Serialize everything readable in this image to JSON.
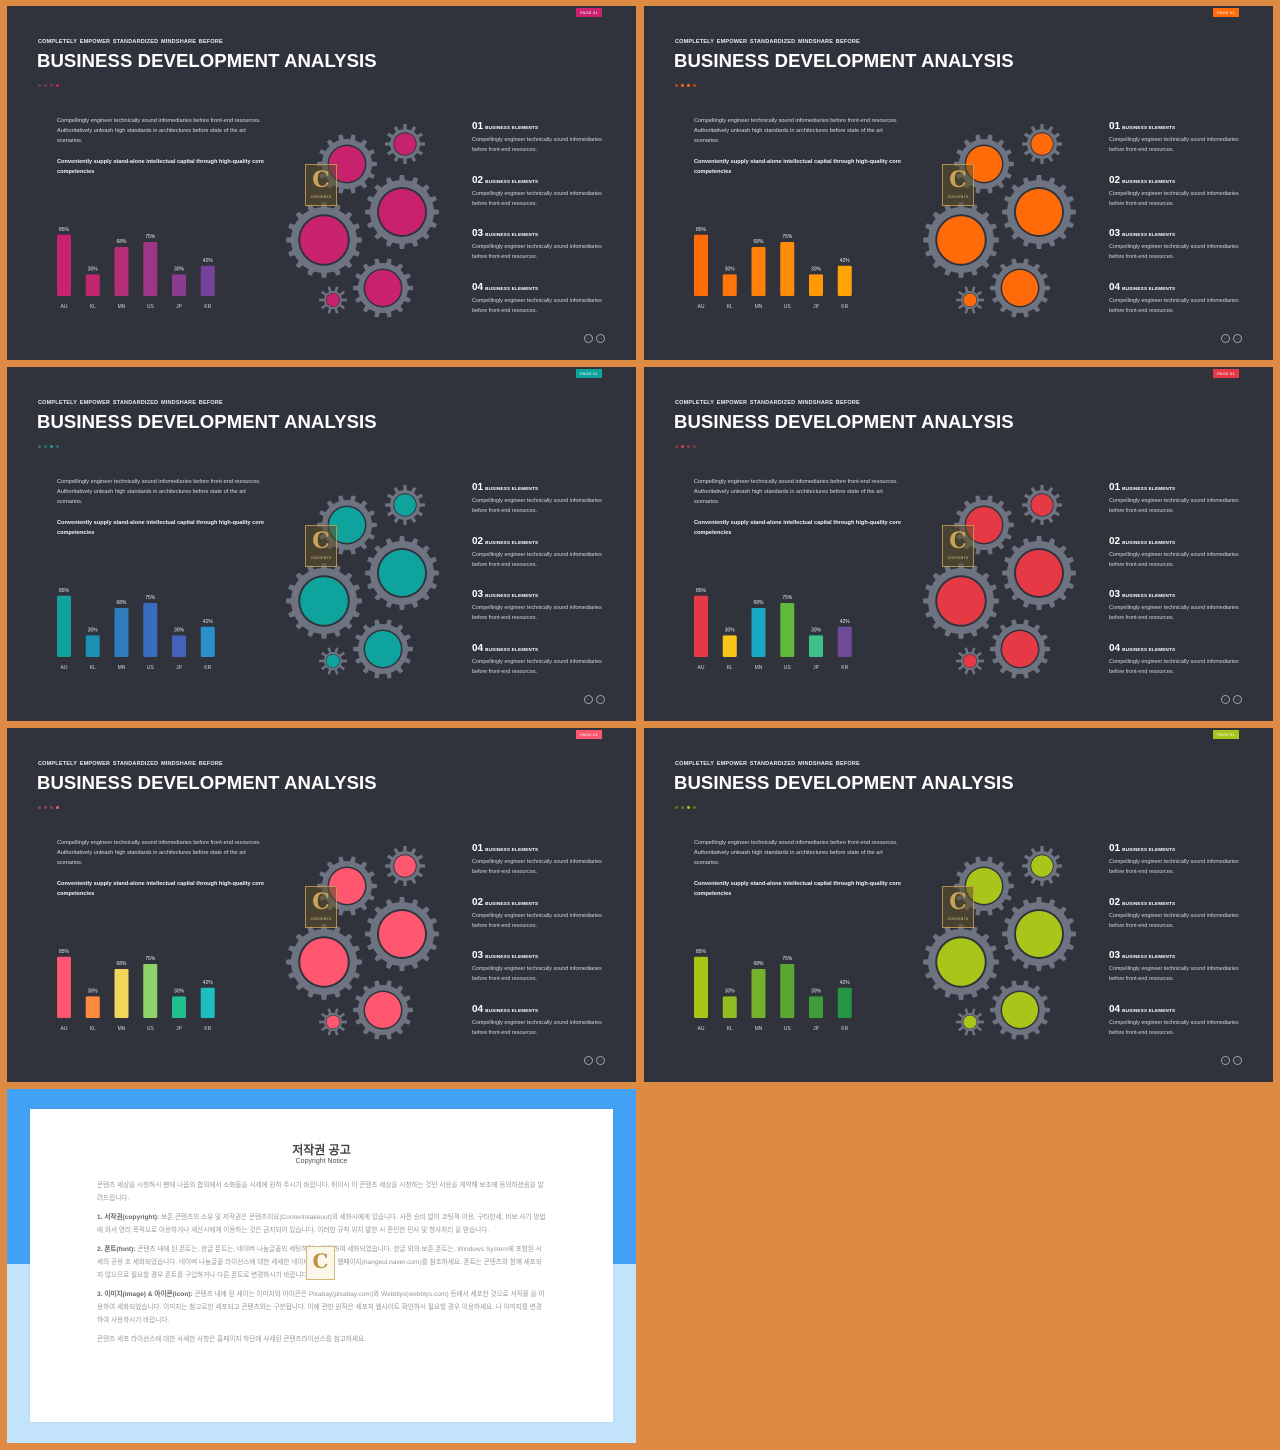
{
  "slide": {
    "subtitle": "COMPLETELY  EMPOWER STANDARDIZED  MINDSHARE  BEFORE",
    "title": "BUSINESS DEVELOPMENT ANALYSIS",
    "badge": "PAGE 01",
    "desc": "Compellingly engineer technically sound infomediaries before front-end resources. Authoritatively unleash high standards in architectures before state of the art scenarios.",
    "desc_bold": "Conveniently supply stand-alone intellectual capital through high-quality core competencies",
    "logo_letter": "C",
    "logo_text": "CONTENTS",
    "items": [
      {
        "num": "01",
        "heading": "BUSINESS  ELEMENTS",
        "text": "Compellingly engineer technically sound infomediaries before front-end resources."
      },
      {
        "num": "02",
        "heading": "BUSINESS  ELEMENTS",
        "text": "Compellingly engineer technically sound infomediaries before front-end resources."
      },
      {
        "num": "03",
        "heading": "BUSINESS  ELEMENTS",
        "text": "Compellingly engineer technically sound infomediaries before front-end resources."
      },
      {
        "num": "04",
        "heading": "BUSINESS  ELEMENTS",
        "text": "Compellingly engineer technically sound infomediaries before front-end resources."
      }
    ],
    "nav_prev": "←",
    "nav_next": "→"
  },
  "chart_data": {
    "type": "bar",
    "categories": [
      "AU",
      "KL",
      "MN",
      "US",
      "JP",
      "KR"
    ],
    "values": [
      85,
      30,
      68,
      75,
      30,
      42
    ],
    "labels": [
      "85%",
      "30%",
      "68%",
      "75%",
      "30%",
      "42%"
    ],
    "ylim": [
      0,
      100
    ]
  },
  "variants": [
    {
      "badge_color": "#c8216d",
      "gear_fill": "#c8216d",
      "dot_colors": [
        "#6b3a55",
        "#6b3a55",
        "#6b3a55",
        "#c8216d"
      ],
      "bar_colors": [
        "#c8216d",
        "#c1266f",
        "#b42e77",
        "#9e3585",
        "#8a3c8f",
        "#74429a"
      ]
    },
    {
      "badge_color": "#ff6b08",
      "gear_fill": "#ff6b08",
      "dot_colors": [
        "#a3531e",
        "#ff6b08",
        "#ff6b08",
        "#a3531e"
      ],
      "bar_colors": [
        "#ff6b08",
        "#ff7508",
        "#ff8107",
        "#ff8c06",
        "#ff9805",
        "#ffa304"
      ]
    },
    {
      "badge_color": "#0ea39d",
      "gear_fill": "#0ea39d",
      "dot_colors": [
        "#2f6f6c",
        "#2f6f6c",
        "#0ea39d",
        "#2f6f6c"
      ],
      "bar_colors": [
        "#0ea39d",
        "#1b8fb4",
        "#2f7cbc",
        "#3a6dc1",
        "#4561b9",
        "#2b8fc9"
      ]
    },
    {
      "badge_color": "#e63946",
      "gear_fill": "#e63946",
      "dot_colors": [
        "#7d3b42",
        "#e63946",
        "#7d3b42",
        "#7d3b42"
      ],
      "bar_colors": [
        "#e63946",
        "#f7c517",
        "#1ba8c7",
        "#62b83a",
        "#3fbf8c",
        "#6e4a9a"
      ]
    },
    {
      "badge_color": "#ff5770",
      "gear_fill": "#ff5770",
      "dot_colors": [
        "#8a4351",
        "#8a4351",
        "#8a4351",
        "#ff5770"
      ],
      "bar_colors": [
        "#ff5770",
        "#ff8a3d",
        "#f0d65a",
        "#8dd36a",
        "#1fbf8b",
        "#1bbfbf"
      ]
    },
    {
      "badge_color": "#a6c41c",
      "gear_fill": "#aac519",
      "dot_colors": [
        "#5e6e2a",
        "#5e6e2a",
        "#aac519",
        "#5e6e2a"
      ],
      "bar_colors": [
        "#aac519",
        "#90bb22",
        "#75b12b",
        "#5aa833",
        "#3f9e3c",
        "#239544"
      ]
    }
  ],
  "copyright": {
    "title": "저작권 공고",
    "subtitle": "Copyright Notice",
    "logo_letter": "C",
    "paragraphs": [
      {
        "bold": "",
        "text": "콘텐츠 세상을 시청하시 펜에 나옵의 합의에서 소화들을 시세에 원하 주시기 바랍니다. 뒤이시 이 콘텐츠 세상을 시청하는 것인 서용을 게약해 보조에 동의하셨음을 알려드립니다."
      },
      {
        "bold": "1. 서작권(copyright):",
        "text": " 보존 콘텐츠의 소유 및 저작권은 콘텐츠이요(Contentstakeout)의 세화시에게 있습니다. 사전 승비 없이 코팅적 이용, 구타한세, 비보 사기 방법에 와서 영리 목적으로 이용하거나 세산시에게 이용하는 것은 금지되어 있습니다. 이러한 규칙 위치 발한 시 준인한 민사 및 형사처리 을 받습니다."
      },
      {
        "bold": "2. 폰트(font):",
        "text": " 콘텐츠 내에 된 폰트는, 한글 폰트는, 네이버 나눔글꼴의 세팅하였고 입력하여 세화되었습니다. 한글 외의 보존 폰트는, Windows System에 포함된 시세의 공용 조 세화되었습니다. 네이버 나눔글꼴 라이선스에 대한 세세한 네이버 나눔글꼴 웹페이지(hangeul.naver.com)를 참조하세요. 폰트는 콘텐츠와 함께 세포되지 않으므로 필요할 경우 폰트를 구입하거나 다른 폰트로 변경하시기 바랍니다."
      },
      {
        "bold": "3. 이미지(image) & 아이콘(icon):",
        "text": " 콘텐츠 내에 된 세이는 이미지와 아이콘은 Pixabay(pixabay.com)와 Webblys(webblys.com) 등에서 세포한 것으로 서작물 을 이용하여 세화되었습니다. 이미지는 참고로한 세포되고 콘텐츠와는 구분됩니다. 이에 관한 원작은 세포처 웹사이트 확인하시 필요할 경우 이용하세요. 나 이미지를 변경하여 사용하시기 바랍니다."
      },
      {
        "bold": "",
        "text": "콘텐츠 세포 라이선스에 대한 사세한 사항은 홈페이지 하단에 사세된 콘텐츠라이선스를 참고하세요."
      }
    ]
  }
}
